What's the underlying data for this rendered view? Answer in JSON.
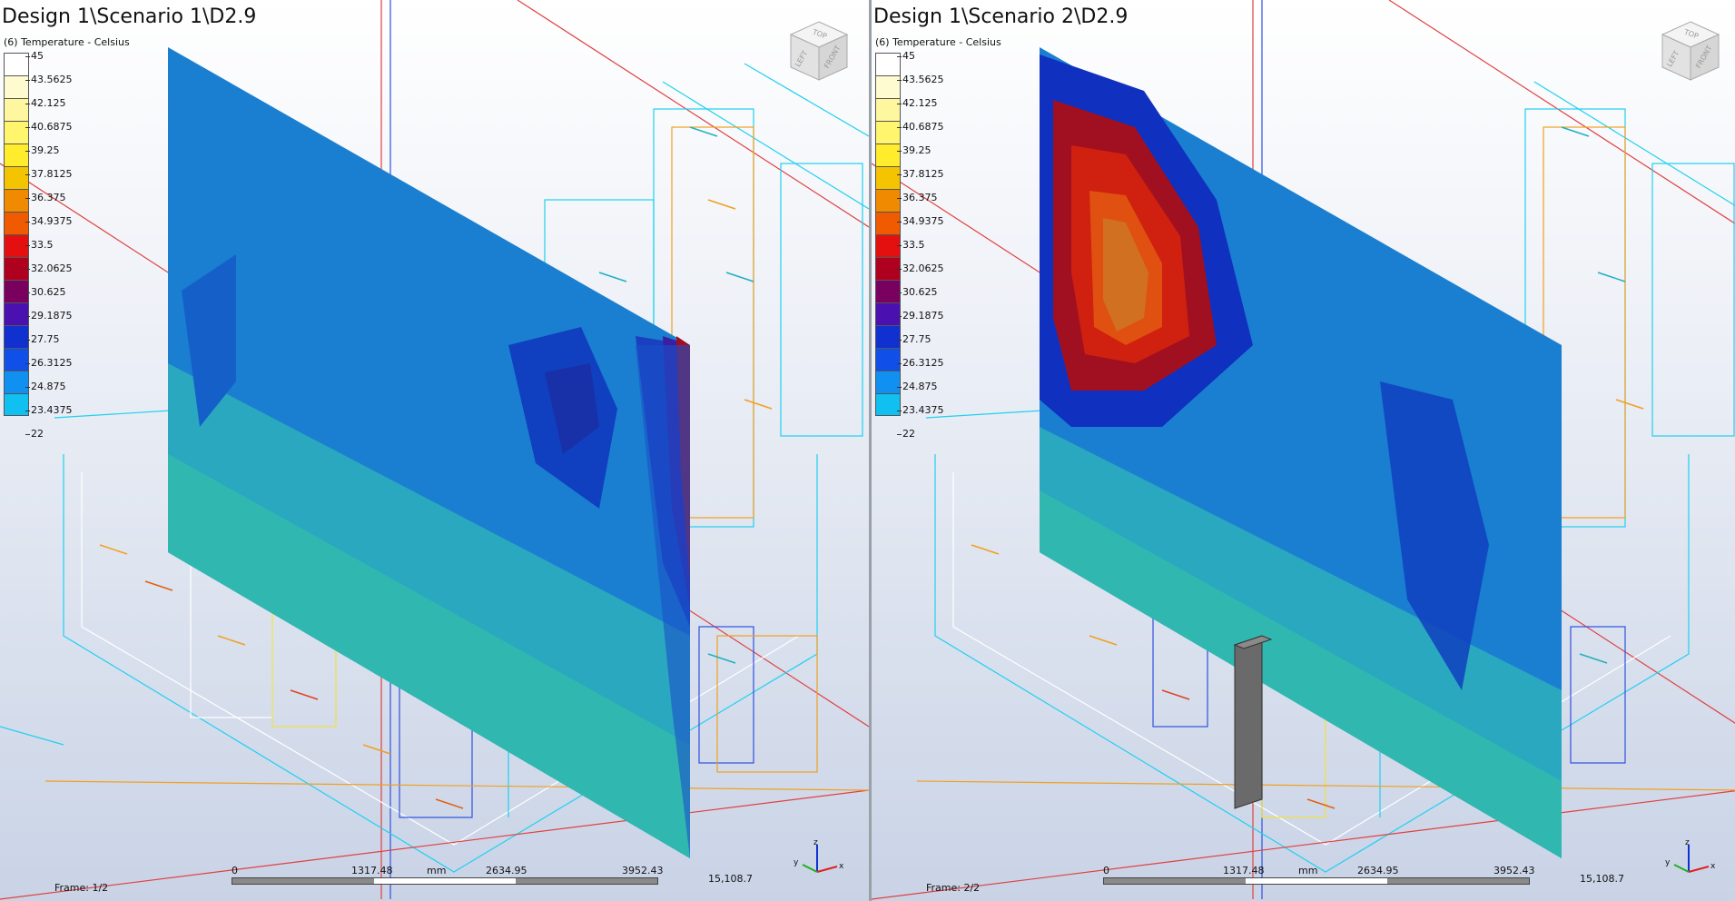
{
  "legend": {
    "subtitle": "(6) Temperature - Celsius",
    "values": [
      "45",
      "43.5625",
      "42.125",
      "40.6875",
      "39.25",
      "37.8125",
      "36.375",
      "34.9375",
      "33.5",
      "32.0625",
      "30.625",
      "29.1875",
      "27.75",
      "26.3125",
      "24.875",
      "23.4375",
      "22"
    ],
    "colors": [
      "#ffffff",
      "#fffbd0",
      "#fff7a0",
      "#fff66e",
      "#ffec2c",
      "#f5c400",
      "#f08a00",
      "#f05a00",
      "#e41010",
      "#b00020",
      "#7a0060",
      "#4a10b0",
      "#1030d0",
      "#1050e8",
      "#1090f0",
      "#10c0f0",
      "#20f0f0"
    ]
  },
  "viewports": [
    {
      "title": "Design 1\\Scenario 1\\D2.9",
      "frame": "Frame: 1/2",
      "scale_labels": [
        "0",
        "1317.48",
        "mm",
        "2634.95",
        "3952.43"
      ],
      "coord": "15,108.7"
    },
    {
      "title": "Design 1\\Scenario 2\\D2.9",
      "frame": "Frame: 2/2",
      "scale_labels": [
        "0",
        "1317.48",
        "mm",
        "2634.95",
        "3952.43"
      ],
      "coord": "15,108.7"
    }
  ],
  "view_cube": {
    "top": "TOP",
    "left": "LEFT",
    "front": "FRONT"
  },
  "axes": {
    "x": "x",
    "y": "y",
    "z": "z"
  }
}
